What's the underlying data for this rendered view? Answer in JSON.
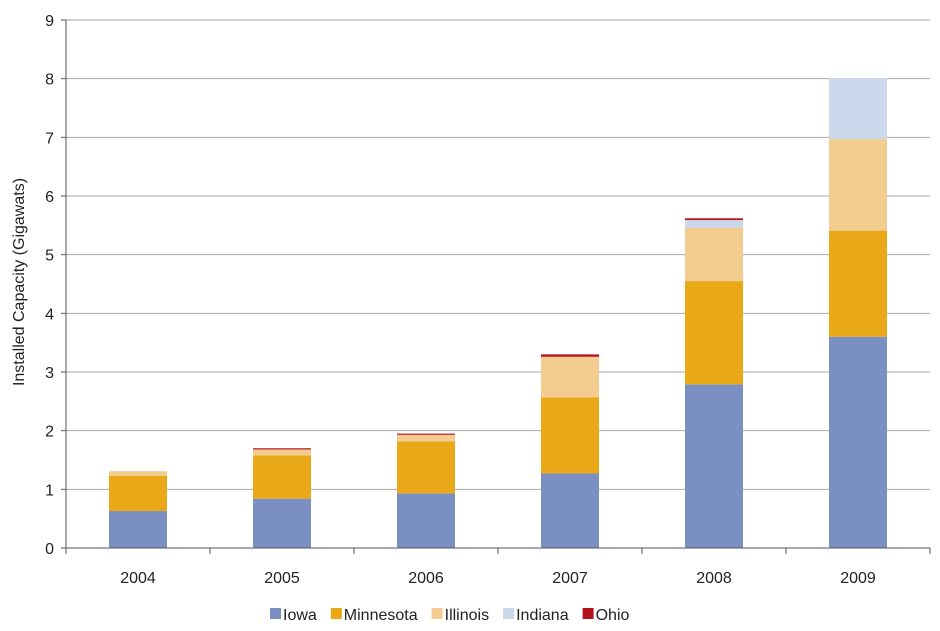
{
  "chart_data": {
    "type": "bar",
    "stacked": true,
    "categories": [
      "2004",
      "2005",
      "2006",
      "2007",
      "2008",
      "2009"
    ],
    "series": [
      {
        "name": "Iowa",
        "color": "#7a8fc2",
        "values": [
          0.63,
          0.84,
          0.93,
          1.27,
          2.79,
          3.6
        ]
      },
      {
        "name": "Minnesota",
        "color": "#e8a818",
        "values": [
          0.6,
          0.74,
          0.89,
          1.3,
          1.76,
          1.81
        ]
      },
      {
        "name": "Illinois",
        "color": "#f3cd8f",
        "values": [
          0.08,
          0.1,
          0.11,
          0.69,
          0.91,
          1.56
        ]
      },
      {
        "name": "Indiana",
        "color": "#cbd7ea",
        "values": [
          0.0,
          0.0,
          0.0,
          0.0,
          0.13,
          1.04
        ]
      },
      {
        "name": "Ohio",
        "color": "#b3111c",
        "values": [
          0.0,
          0.02,
          0.02,
          0.04,
          0.03,
          0.0
        ]
      }
    ],
    "ylabel": "Installed Capacity (Gigawats)",
    "xlabel": "",
    "ylim": [
      0,
      9
    ],
    "yticks": [
      "0",
      "1",
      "2",
      "3",
      "4",
      "5",
      "6",
      "7",
      "8",
      "9"
    ],
    "grid": true,
    "legend_position": "bottom"
  }
}
